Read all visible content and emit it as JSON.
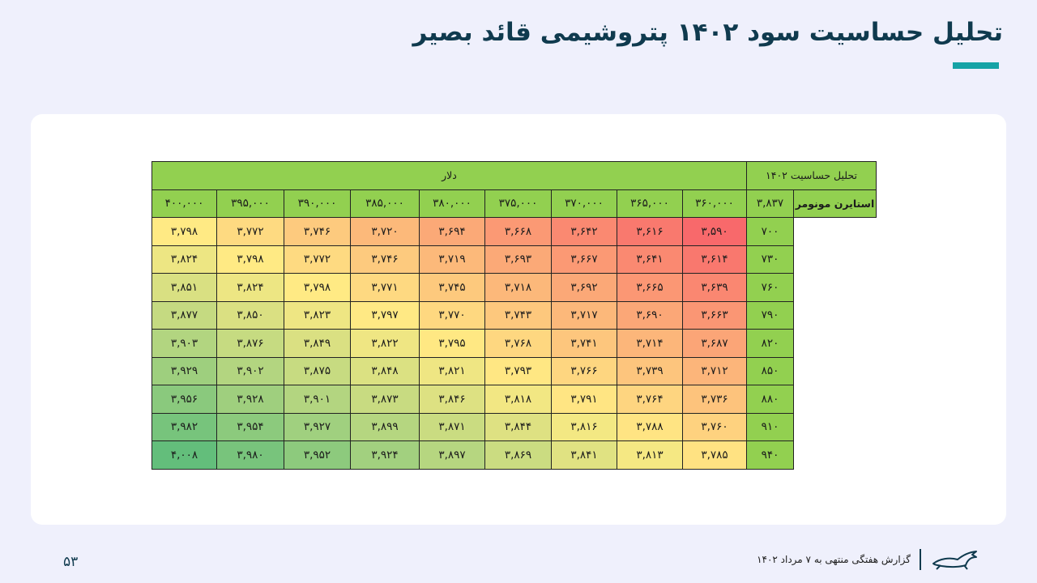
{
  "page": {
    "title": "تحلیل حساسیت سود ۱۴۰۲ پتروشیمی قائد بصیر",
    "number": "۵۳",
    "footer_text": "گزارش هفتگی منتهی به ۷ مرداد ۱۴۰۲",
    "logo_icon": "horse-logo-icon",
    "accent_color": "#16a3a6"
  },
  "table": {
    "corner_label": "تحلیل حساسیت ۱۴۰۲",
    "top_header": "دلار",
    "side_header": "استایرن مونومر",
    "base_value": "۳,۸۳۷",
    "columns": [
      "۳۶۰,۰۰۰",
      "۳۶۵,۰۰۰",
      "۳۷۰,۰۰۰",
      "۳۷۵,۰۰۰",
      "۳۸۰,۰۰۰",
      "۳۸۵,۰۰۰",
      "۳۹۰,۰۰۰",
      "۳۹۵,۰۰۰",
      "۴۰۰,۰۰۰"
    ],
    "rows": [
      {
        "label": "۷۰۰",
        "cells": [
          "۳,۵۹۰",
          "۳,۶۱۶",
          "۳,۶۴۲",
          "۳,۶۶۸",
          "۳,۶۹۴",
          "۳,۷۲۰",
          "۳,۷۴۶",
          "۳,۷۷۲",
          "۳,۷۹۸"
        ]
      },
      {
        "label": "۷۳۰",
        "cells": [
          "۳,۶۱۴",
          "۳,۶۴۱",
          "۳,۶۶۷",
          "۳,۶۹۳",
          "۳,۷۱۹",
          "۳,۷۴۶",
          "۳,۷۷۲",
          "۳,۷۹۸",
          "۳,۸۲۴"
        ]
      },
      {
        "label": "۷۶۰",
        "cells": [
          "۳,۶۳۹",
          "۳,۶۶۵",
          "۳,۶۹۲",
          "۳,۷۱۸",
          "۳,۷۴۵",
          "۳,۷۷۱",
          "۳,۷۹۸",
          "۳,۸۲۴",
          "۳,۸۵۱"
        ]
      },
      {
        "label": "۷۹۰",
        "cells": [
          "۳,۶۶۳",
          "۳,۶۹۰",
          "۳,۷۱۷",
          "۳,۷۴۳",
          "۳,۷۷۰",
          "۳,۷۹۷",
          "۳,۸۲۳",
          "۳,۸۵۰",
          "۳,۸۷۷"
        ]
      },
      {
        "label": "۸۲۰",
        "cells": [
          "۳,۶۸۷",
          "۳,۷۱۴",
          "۳,۷۴۱",
          "۳,۷۶۸",
          "۳,۷۹۵",
          "۳,۸۲۲",
          "۳,۸۴۹",
          "۳,۸۷۶",
          "۳,۹۰۳"
        ]
      },
      {
        "label": "۸۵۰",
        "cells": [
          "۳,۷۱۲",
          "۳,۷۳۹",
          "۳,۷۶۶",
          "۳,۷۹۳",
          "۳,۸۲۱",
          "۳,۸۴۸",
          "۳,۸۷۵",
          "۳,۹۰۲",
          "۳,۹۲۹"
        ]
      },
      {
        "label": "۸۸۰",
        "cells": [
          "۳,۷۳۶",
          "۳,۷۶۴",
          "۳,۷۹۱",
          "۳,۸۱۸",
          "۳,۸۴۶",
          "۳,۸۷۳",
          "۳,۹۰۱",
          "۳,۹۲۸",
          "۳,۹۵۶"
        ]
      },
      {
        "label": "۹۱۰",
        "cells": [
          "۳,۷۶۰",
          "۳,۷۸۸",
          "۳,۸۱۶",
          "۳,۸۴۴",
          "۳,۸۷۱",
          "۳,۸۹۹",
          "۳,۹۲۷",
          "۳,۹۵۴",
          "۳,۹۸۲"
        ]
      },
      {
        "label": "۹۴۰",
        "cells": [
          "۳,۷۸۵",
          "۳,۸۱۳",
          "۳,۸۴۱",
          "۳,۸۶۹",
          "۳,۸۹۷",
          "۳,۹۲۴",
          "۳,۹۵۲",
          "۳,۹۸۰",
          "۴,۰۰۸"
        ]
      }
    ],
    "colors": {
      "header": "#92d050",
      "scale_low": "#f8696b",
      "scale_mid": "#ffeb84",
      "scale_high": "#63be7b"
    }
  }
}
